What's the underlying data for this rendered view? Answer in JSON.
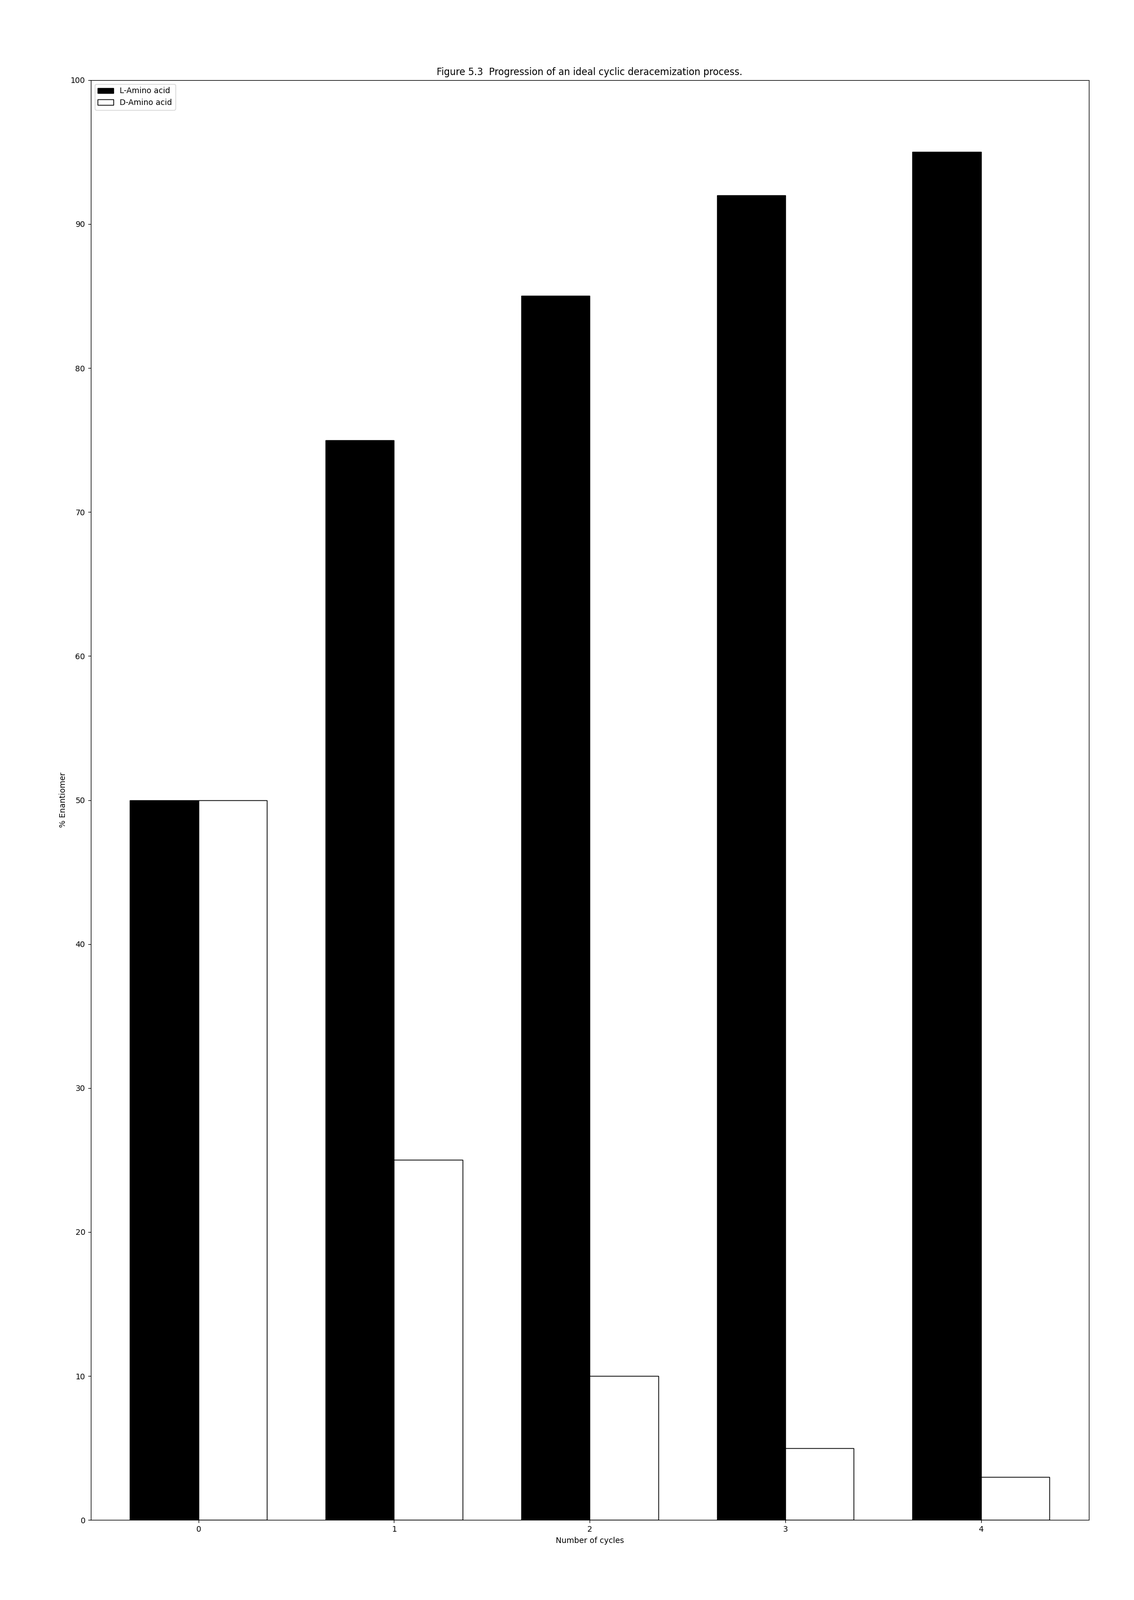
{
  "chart_data": {
    "type": "bar",
    "title": "Figure 5.3  Progression of an ideal cyclic deracemization process.",
    "x_label": "Number of cycles",
    "y_label": "% Enantiomer",
    "x": [
      0,
      1,
      2,
      3,
      4
    ],
    "xlim": [
      -0.55,
      4.55
    ],
    "xticks": [
      0,
      1,
      2,
      3,
      4
    ],
    "ylim": [
      0,
      100
    ],
    "yticks": [
      0,
      10,
      20,
      30,
      40,
      50,
      60,
      70,
      80,
      90,
      100
    ],
    "series": [
      {
        "name": "L-Amino acid",
        "color": "#000000",
        "values": [
          50,
          75,
          85,
          92,
          95
        ]
      },
      {
        "name": "D-Amino acid",
        "color": "#ffffff",
        "values": [
          50,
          25,
          10,
          5,
          3
        ]
      }
    ],
    "grid": false,
    "legend": "upper left"
  }
}
